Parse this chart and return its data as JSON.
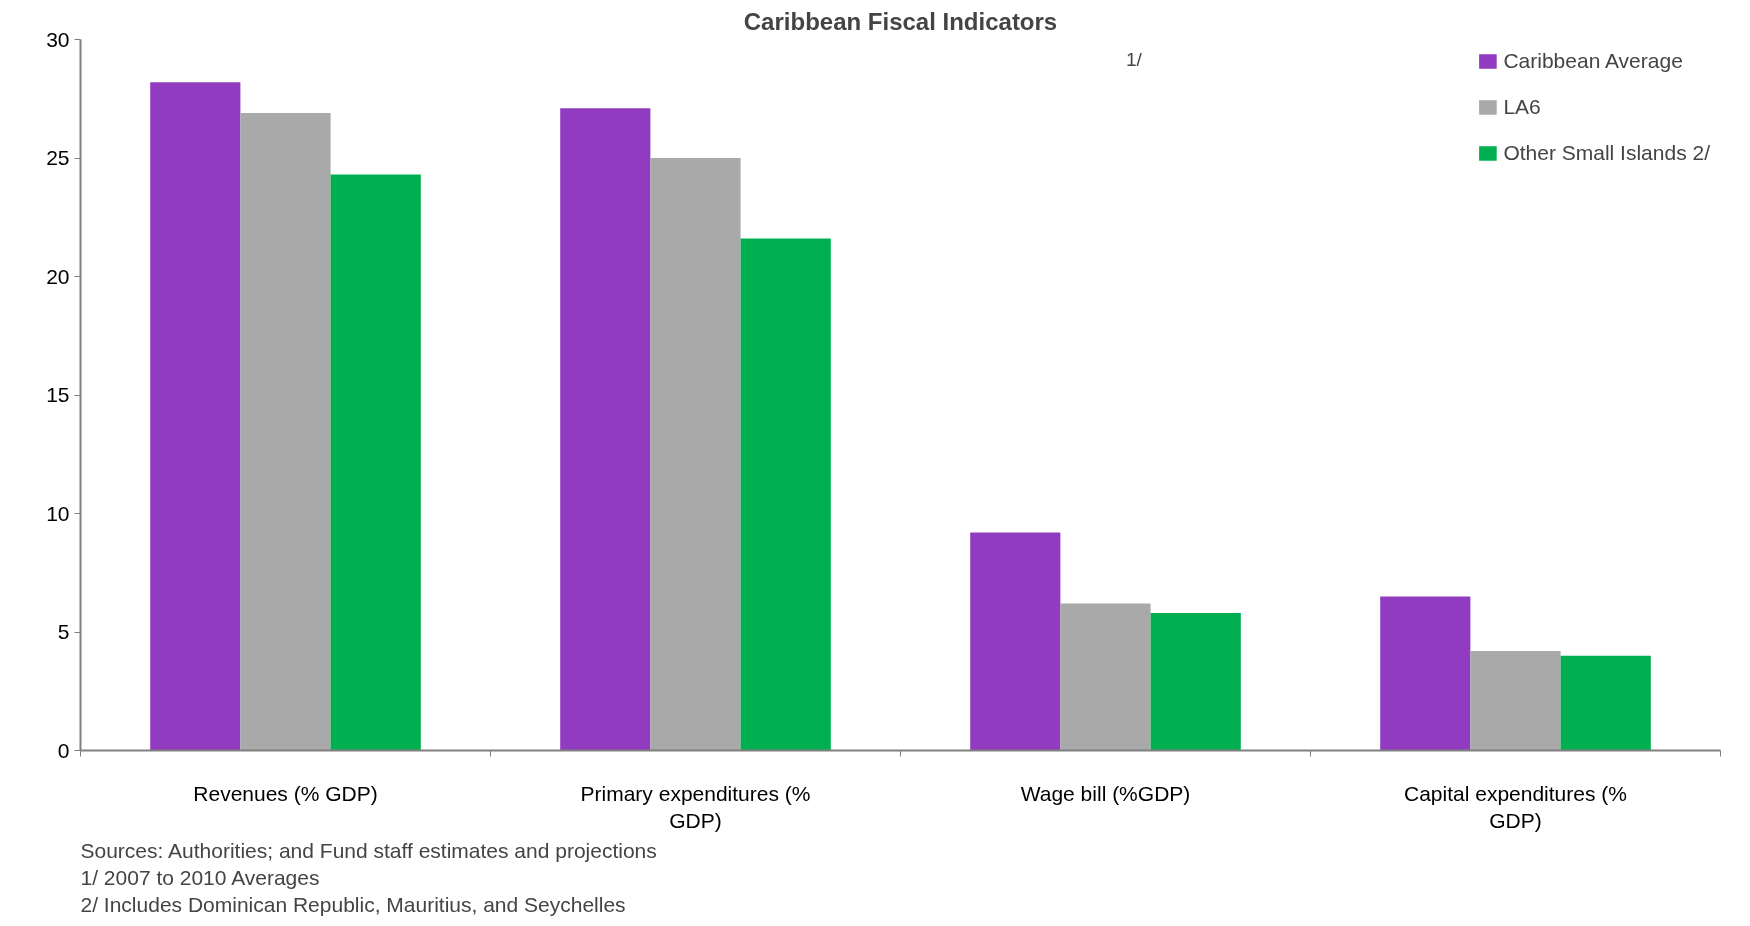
{
  "chart_data": {
    "type": "bar",
    "title": "Caribbean Fiscal Indicators",
    "categories": [
      "Revenues (% GDP)",
      "Primary expenditures (% GDP)",
      "Wage bill (%GDP)",
      "Capital expenditures (% GDP)"
    ],
    "series": [
      {
        "name": "Caribbean Average",
        "color": "#913cc0",
        "values": [
          28.2,
          27.1,
          9.2,
          6.5
        ]
      },
      {
        "name": "LA6",
        "color": "#a9a9a9",
        "values": [
          26.9,
          25.0,
          6.2,
          4.2
        ]
      },
      {
        "name": "Other Small Islands 2/",
        "color": "#00b050",
        "values": [
          24.3,
          21.6,
          5.8,
          4.0
        ]
      }
    ],
    "ylim": [
      0,
      30
    ],
    "yticks": [
      0,
      5,
      10,
      15,
      20,
      25,
      30
    ],
    "grid": false,
    "legend": "top right",
    "annotations": [
      "1/",
      "Sources: Authorities; and Fund staff estimates and projections",
      "1/  2007 to 2010 Averages",
      "2/ Includes Dominican Republic, Mauritius, and Seychelles"
    ]
  }
}
